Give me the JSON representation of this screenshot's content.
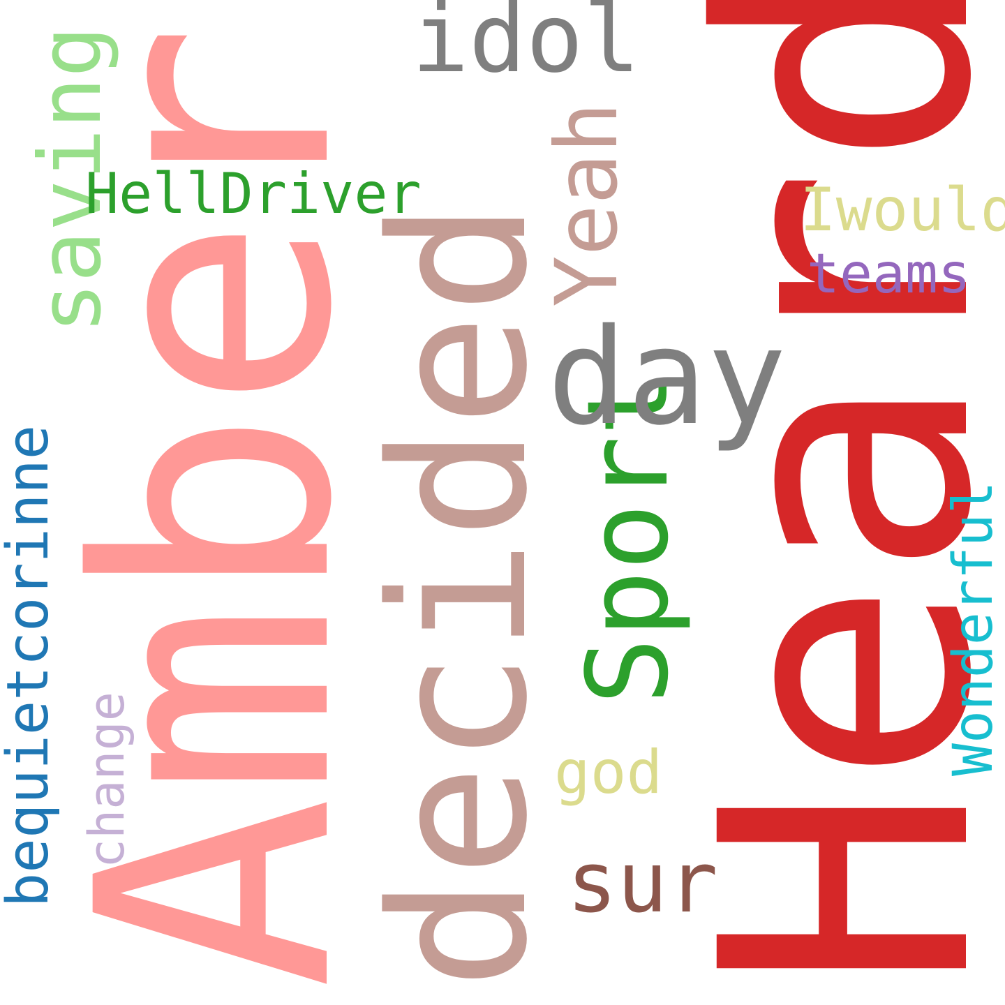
{
  "words": {
    "heard": {
      "text": "Heard",
      "color": "#d62728"
    },
    "amber": {
      "text": "Amber",
      "color": "#ff9896"
    },
    "decided": {
      "text": "decided",
      "color": "#c49c94"
    },
    "day": {
      "text": "day",
      "color": "#7f7f7f"
    },
    "sport": {
      "text": "Sport",
      "color": "#2ca02c"
    },
    "idol": {
      "text": "idol",
      "color": "#7f7f7f"
    },
    "yeah": {
      "text": "Yeah",
      "color": "#c49c94"
    },
    "saving": {
      "text": "saving",
      "color": "#98df8a"
    },
    "helldriver": {
      "text": "HellDriver",
      "color": "#2ca02c"
    },
    "bequietcorinne": {
      "text": "bequietcorinne",
      "color": "#1f77b4"
    },
    "sur": {
      "text": "sur",
      "color": "#8c564b"
    },
    "iwould": {
      "text": "Iwould",
      "color": "#dbdb8d"
    },
    "teams": {
      "text": "teams",
      "color": "#9467bd"
    },
    "wonderful": {
      "text": "Wonderful",
      "color": "#17becf"
    },
    "change": {
      "text": "change",
      "color": "#c5b0d5"
    },
    "god": {
      "text": "god",
      "color": "#dbdb8d"
    }
  }
}
